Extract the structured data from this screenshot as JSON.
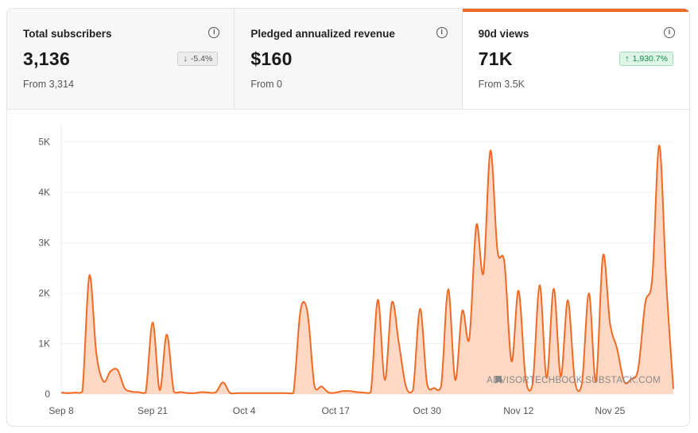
{
  "stats": [
    {
      "title": "Total subscribers",
      "value": "3,136",
      "change": "-5.4%",
      "direction": "down",
      "from": "From 3,314"
    },
    {
      "title": "Pledged annualized revenue",
      "value": "$160",
      "from": "From 0"
    },
    {
      "title": "90d views",
      "value": "71K",
      "change": "1,930.7%",
      "direction": "up",
      "from": "From 3.5K",
      "active": true
    }
  ],
  "info_icon_glyph": "i",
  "chart_data": {
    "type": "area",
    "title": "",
    "xlabel": "",
    "ylabel": "",
    "ylim": [
      0,
      5200
    ],
    "y_ticks": [
      0,
      1000,
      2000,
      3000,
      4000,
      5000
    ],
    "y_tick_labels": [
      "0",
      "1K",
      "2K",
      "3K",
      "4K",
      "5K"
    ],
    "x_tick_labels": [
      "Sep 8",
      "Sep 21",
      "Oct 4",
      "Oct 17",
      "Oct 30",
      "Nov 12",
      "Nov 25"
    ],
    "x_tick_index": [
      0,
      13,
      26,
      39,
      52,
      65,
      78
    ],
    "series": [
      {
        "name": "90d views",
        "color": "#f06a25",
        "fill": "#fdd8c5",
        "values": [
          30,
          20,
          30,
          50,
          2350,
          800,
          250,
          450,
          480,
          120,
          50,
          40,
          30,
          1420,
          80,
          1180,
          50,
          40,
          20,
          20,
          40,
          30,
          40,
          230,
          20,
          20,
          20,
          20,
          20,
          20,
          20,
          20,
          20,
          20,
          1650,
          1620,
          150,
          150,
          30,
          30,
          60,
          60,
          40,
          30,
          40,
          1870,
          280,
          1820,
          1000,
          150,
          80,
          1690,
          200,
          120,
          160,
          2080,
          280,
          1650,
          1100,
          3350,
          2400,
          4830,
          2850,
          2600,
          650,
          2050,
          320,
          200,
          2160,
          320,
          2090,
          350,
          1860,
          260,
          200,
          2000,
          250,
          2750,
          1400,
          900,
          250,
          300,
          500,
          1800,
          2300,
          4930,
          2200,
          100
        ]
      }
    ],
    "watermark": "ADVISORTECHBOOK.SUBSTACK.COM"
  }
}
